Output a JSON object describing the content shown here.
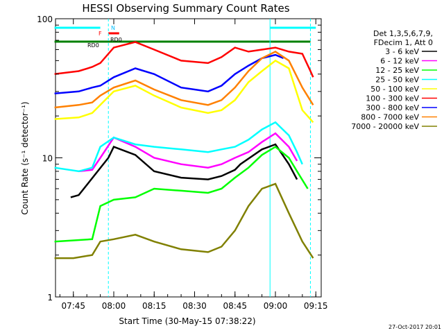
{
  "chart_data": {
    "type": "line",
    "title": "HESSI Observing Summary Count Rates",
    "xlabel": "Start Time (30-May-15 07:38:22)",
    "ylabel": "Count Rate (s⁻¹ detector⁻¹)",
    "yscale": "log",
    "ylim": [
      1,
      100
    ],
    "xlim": [
      "07:38:22",
      "09:17:00"
    ],
    "x_ticks": [
      "07:45",
      "08:00",
      "08:15",
      "08:30",
      "08:45",
      "09:00",
      "09:15"
    ],
    "y_ticks": [
      "1",
      "10",
      "100"
    ],
    "grid": false,
    "legend_position": "right",
    "legend_header": [
      "Det 1,3,5,6,7,9,",
      "FDecim 1, Att 0"
    ],
    "series": [
      {
        "name": "3 - 6 keV",
        "color": "#000000",
        "x": [
          "07:44",
          "07:47",
          "07:58",
          "08:00",
          "08:08",
          "08:15",
          "08:25",
          "08:35",
          "08:40",
          "08:45",
          "08:47",
          "08:55",
          "09:00",
          "09:05",
          "09:08"
        ],
        "values": [
          5.2,
          5.4,
          10.0,
          12.0,
          10.5,
          8.0,
          7.2,
          7.0,
          7.4,
          8.2,
          9.0,
          11.5,
          12.5,
          9.0,
          7.0
        ]
      },
      {
        "name": "6 - 12 keV",
        "color": "#ff00ff",
        "x": [
          "07:47",
          "07:52",
          "07:55",
          "08:00",
          "08:08",
          "08:15",
          "08:25",
          "08:35",
          "08:40",
          "08:45",
          "08:50",
          "08:55",
          "09:00",
          "09:05",
          "09:08"
        ],
        "values": [
          8.0,
          8.2,
          10.0,
          14.0,
          12.0,
          10.0,
          9.0,
          8.5,
          9.0,
          10.0,
          11.0,
          13.0,
          15.0,
          12.0,
          9.5
        ]
      },
      {
        "name": "12 - 25 keV",
        "color": "#00ff00",
        "x": [
          "07:38",
          "07:52",
          "07:55",
          "08:00",
          "08:08",
          "08:15",
          "08:25",
          "08:35",
          "08:40",
          "08:45",
          "08:50",
          "08:55",
          "09:00",
          "09:05",
          "09:08",
          "09:12"
        ],
        "values": [
          2.5,
          2.6,
          4.5,
          5.0,
          5.2,
          6.0,
          5.8,
          5.6,
          6.0,
          7.2,
          8.5,
          10.5,
          12.0,
          10.0,
          8.0,
          6.0
        ]
      },
      {
        "name": "25 - 50 keV",
        "color": "#00ffff",
        "x": [
          "07:38",
          "07:47",
          "07:52",
          "07:55",
          "08:00",
          "08:08",
          "08:15",
          "08:25",
          "08:35",
          "08:40",
          "08:45",
          "08:50",
          "08:55",
          "09:00",
          "09:05",
          "09:08",
          "09:10"
        ],
        "values": [
          8.5,
          8.0,
          8.5,
          12.0,
          14.0,
          12.5,
          12.0,
          11.5,
          11.0,
          11.5,
          12.0,
          13.5,
          16.0,
          18.0,
          14.5,
          11.0,
          9.0
        ]
      },
      {
        "name": "50 - 100 keV",
        "color": "#ffff00",
        "x": [
          "07:38",
          "07:47",
          "07:52",
          "08:00",
          "08:08",
          "08:15",
          "08:25",
          "08:35",
          "08:40",
          "08:45",
          "08:50",
          "08:55",
          "09:00",
          "09:05",
          "09:10",
          "09:14"
        ],
        "values": [
          19.0,
          19.5,
          21.0,
          30.0,
          33.0,
          28.0,
          23.0,
          21.0,
          22.0,
          26.0,
          35.0,
          42.0,
          50.0,
          44.0,
          22.0,
          18.0
        ]
      },
      {
        "name": "100 - 300 keV",
        "color": "#ff0000",
        "x": [
          "07:38",
          "07:47",
          "07:52",
          "07:55",
          "08:00",
          "08:08",
          "08:15",
          "08:25",
          "08:35",
          "08:40",
          "08:45",
          "08:50",
          "08:55",
          "09:00",
          "09:05",
          "09:10",
          "09:13",
          "09:14"
        ],
        "values": [
          40.0,
          42.0,
          45.0,
          48.0,
          62.0,
          68.0,
          60.0,
          50.0,
          48.0,
          53.0,
          62.0,
          58.0,
          60.0,
          62.0,
          58.0,
          56.0,
          42.0,
          38.0
        ]
      },
      {
        "name": "300 - 800 keV",
        "color": "#0000ff",
        "x": [
          "07:38",
          "07:47",
          "07:52",
          "07:55",
          "08:00",
          "08:08",
          "08:15",
          "08:25",
          "08:35",
          "08:40",
          "08:45",
          "08:50",
          "08:55",
          "09:00",
          "09:03"
        ],
        "values": [
          29.0,
          30.0,
          32.0,
          33.0,
          38.0,
          44.0,
          40.0,
          32.0,
          30.0,
          33.0,
          40.0,
          46.0,
          52.0,
          55.0,
          52.0
        ]
      },
      {
        "name": "800 - 7000 keV",
        "color": "#ff8000",
        "x": [
          "07:38",
          "07:47",
          "07:52",
          "07:55",
          "08:00",
          "08:08",
          "08:15",
          "08:25",
          "08:35",
          "08:40",
          "08:45",
          "08:50",
          "08:55",
          "09:00",
          "09:05",
          "09:10",
          "09:14"
        ],
        "values": [
          23.0,
          24.0,
          25.0,
          28.0,
          32.0,
          36.0,
          31.0,
          26.0,
          24.0,
          26.0,
          32.0,
          42.0,
          52.0,
          58.0,
          50.0,
          32.0,
          24.0
        ]
      },
      {
        "name": "7000 - 20000 keV",
        "color": "#808000",
        "x": [
          "07:38",
          "07:45",
          "07:52",
          "07:55",
          "08:00",
          "08:08",
          "08:15",
          "08:25",
          "08:35",
          "08:40",
          "08:45",
          "08:50",
          "08:55",
          "09:00",
          "09:05",
          "09:10",
          "09:14"
        ],
        "values": [
          1.9,
          1.9,
          2.0,
          2.5,
          2.6,
          2.8,
          2.5,
          2.2,
          2.1,
          2.3,
          3.0,
          4.5,
          6.0,
          6.5,
          4.0,
          2.5,
          1.9
        ]
      }
    ],
    "flag_bars": [
      {
        "label": "N",
        "color": "#00ffff",
        "segments": [
          [
            "07:38",
            "07:55"
          ],
          [
            "08:58",
            "09:15"
          ]
        ]
      },
      {
        "label": "F",
        "color": "#ff0000",
        "segments": [
          [
            "07:58",
            "08:02"
          ]
        ]
      },
      {
        "label": "RD0",
        "color": "#008000",
        "segments": [
          [
            "07:38",
            "09:13"
          ]
        ]
      }
    ],
    "flag_text": [
      "N",
      "F",
      "RD0",
      "RD0"
    ]
  },
  "footer": {
    "timestamp": "27-Oct-2017 20:01"
  }
}
